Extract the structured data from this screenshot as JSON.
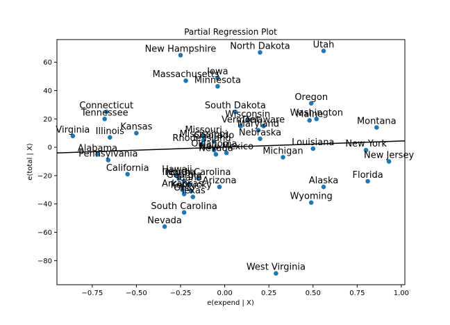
{
  "chart_data": {
    "type": "scatter",
    "title": "Partial Regression Plot",
    "xlabel": "e(expend | X)",
    "ylabel": "e(total | X)",
    "xlim": [
      -0.95,
      1.02
    ],
    "ylim": [
      -97,
      76
    ],
    "xticks": [
      -0.75,
      -0.5,
      -0.25,
      0.0,
      0.25,
      0.5,
      0.75,
      1.0
    ],
    "xtick_labels": [
      "−0.75",
      "−0.50",
      "−0.25",
      "0.00",
      "0.25",
      "0.50",
      "0.75",
      "1.00"
    ],
    "yticks": [
      -80,
      -60,
      -40,
      -20,
      0,
      20,
      40,
      60
    ],
    "ytick_labels": [
      "−80",
      "−60",
      "−40",
      "−20",
      "0",
      "20",
      "40",
      "60"
    ],
    "grid": false,
    "marker_color": "#1f77b4",
    "fit_line": {
      "x": [
        -0.95,
        1.02
      ],
      "y": [
        -4.0,
        4.5
      ],
      "color": "#000000"
    },
    "points": [
      {
        "label": "Utah",
        "x": 0.56,
        "y": 68
      },
      {
        "label": "North Dakota",
        "x": 0.2,
        "y": 67
      },
      {
        "label": "New Hampshire",
        "x": -0.25,
        "y": 65
      },
      {
        "label": "Iowa",
        "x": -0.04,
        "y": 49
      },
      {
        "label": "Massachusetts",
        "x": -0.22,
        "y": 47
      },
      {
        "label": "Minnesota",
        "x": -0.04,
        "y": 43
      },
      {
        "label": "Oregon",
        "x": 0.49,
        "y": 31
      },
      {
        "label": "Connecticut",
        "x": -0.67,
        "y": 25
      },
      {
        "label": "South Dakota",
        "x": 0.06,
        "y": 25
      },
      {
        "label": "Tennessee",
        "x": -0.68,
        "y": 20
      },
      {
        "label": "Wisconsin",
        "x": 0.13,
        "y": 19
      },
      {
        "label": "Washington",
        "x": 0.52,
        "y": 20
      },
      {
        "label": "Maine",
        "x": 0.48,
        "y": 19
      },
      {
        "label": "Vermont",
        "x": 0.09,
        "y": 15
      },
      {
        "label": "Delaware",
        "x": 0.22,
        "y": 15
      },
      {
        "label": "Maryland",
        "x": 0.19,
        "y": 12
      },
      {
        "label": "Montana",
        "x": 0.86,
        "y": 14
      },
      {
        "label": "Kansas",
        "x": -0.5,
        "y": 10
      },
      {
        "label": "Illinois",
        "x": -0.65,
        "y": 7
      },
      {
        "label": "Virginia",
        "x": -0.86,
        "y": 8
      },
      {
        "label": "Nebraska",
        "x": 0.2,
        "y": 6
      },
      {
        "label": "Missouri",
        "x": -0.12,
        "y": 8
      },
      {
        "label": "Mississippi",
        "x": -0.12,
        "y": 5
      },
      {
        "label": "Colorado",
        "x": -0.06,
        "y": 4
      },
      {
        "label": "Rhode Island",
        "x": -0.13,
        "y": 2
      },
      {
        "label": "Oklahoma",
        "x": -0.06,
        "y": -2
      },
      {
        "label": "Nevada",
        "x": -0.05,
        "y": -5
      },
      {
        "label": "New Mexico",
        "x": 0.01,
        "y": -4
      },
      {
        "label": "Louisiana",
        "x": 0.5,
        "y": -1
      },
      {
        "label": "Michigan",
        "x": 0.33,
        "y": -7
      },
      {
        "label": "New York",
        "x": 0.8,
        "y": -2
      },
      {
        "label": "New Jersey",
        "x": 0.93,
        "y": -10
      },
      {
        "label": "Alabama",
        "x": -0.72,
        "y": -5
      },
      {
        "label": "Pennsylvania",
        "x": -0.66,
        "y": -9
      },
      {
        "label": "California",
        "x": -0.55,
        "y": -19
      },
      {
        "label": "Hawaii",
        "x": -0.27,
        "y": -20
      },
      {
        "label": "Indiana",
        "x": -0.26,
        "y": -22
      },
      {
        "label": "Georgia",
        "x": -0.23,
        "y": -24
      },
      {
        "label": "Idaho",
        "x": -0.2,
        "y": -26
      },
      {
        "label": "North Carolina",
        "x": -0.15,
        "y": -22
      },
      {
        "label": "Arizona",
        "x": -0.03,
        "y": -28
      },
      {
        "label": "Arkansas",
        "x": -0.24,
        "y": -30
      },
      {
        "label": "Kentucky",
        "x": -0.19,
        "y": -31
      },
      {
        "label": "Ohio",
        "x": -0.23,
        "y": -33
      },
      {
        "label": "Texas",
        "x": -0.18,
        "y": -35
      },
      {
        "label": "Alaska",
        "x": 0.56,
        "y": -28
      },
      {
        "label": "Florida",
        "x": 0.81,
        "y": -24
      },
      {
        "label": "Wyoming",
        "x": 0.49,
        "y": -39
      },
      {
        "label": "South Carolina",
        "x": -0.23,
        "y": -46
      },
      {
        "label": "Nevada",
        "x": -0.34,
        "y": -56
      },
      {
        "label": "West Virginia",
        "x": 0.29,
        "y": -89
      }
    ]
  }
}
